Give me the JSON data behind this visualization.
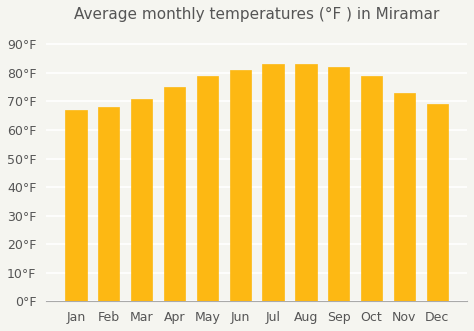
{
  "title": "Average monthly temperatures (°F ) in Miramar",
  "months": [
    "Jan",
    "Feb",
    "Mar",
    "Apr",
    "May",
    "Jun",
    "Jul",
    "Aug",
    "Sep",
    "Oct",
    "Nov",
    "Dec"
  ],
  "values": [
    67,
    68,
    71,
    75,
    79,
    81,
    83,
    83,
    82,
    79,
    73,
    69
  ],
  "bar_color": "#FDB813",
  "bar_edge_color": "#FDB813",
  "ylim": [
    0,
    95
  ],
  "yticks": [
    0,
    10,
    20,
    30,
    40,
    50,
    60,
    70,
    80,
    90
  ],
  "ytick_labels": [
    "0°F",
    "10°F",
    "20°F",
    "30°F",
    "40°F",
    "50°F",
    "60°F",
    "70°F",
    "80°F",
    "90°F"
  ],
  "background_color": "#f5f5f0",
  "grid_color": "#ffffff",
  "title_fontsize": 11,
  "tick_fontsize": 9,
  "title_color": "#555555",
  "tick_color": "#555555"
}
